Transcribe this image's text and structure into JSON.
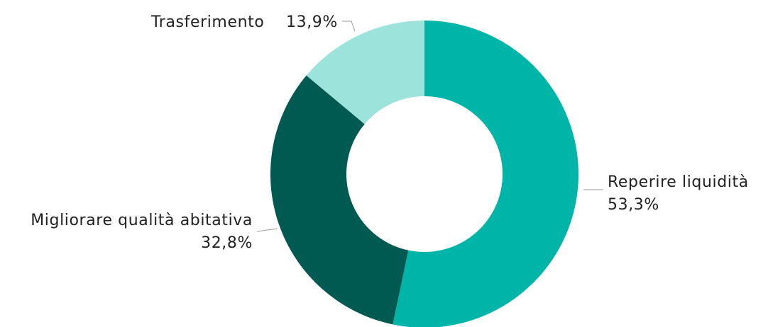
{
  "chart_data": {
    "type": "pie",
    "variant": "donut",
    "categories": [
      "Reperire liquidità",
      "Migliorare qualità abitativa",
      "Trasferimento"
    ],
    "values": [
      53.3,
      32.8,
      13.9
    ],
    "value_labels": [
      "53,3%",
      "32,8%",
      "13,9%"
    ],
    "colors": [
      "#00b5a8",
      "#005a51",
      "#9ce3dc"
    ],
    "title": "",
    "legend": "none"
  }
}
